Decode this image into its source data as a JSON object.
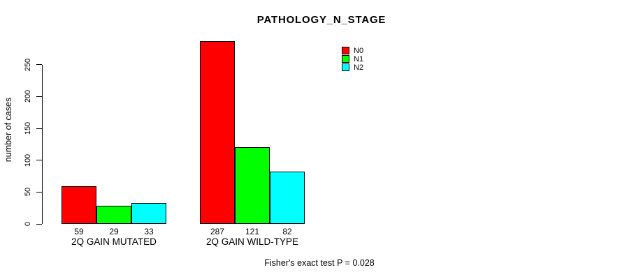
{
  "chart_data": {
    "type": "bar",
    "title": "PATHOLOGY_N_STAGE",
    "ylabel": "number of cases",
    "xlabel": "",
    "annotation": "Fisher's exact test P = 0.028",
    "categories": [
      "2Q GAIN MUTATED",
      "2Q GAIN WILD-TYPE"
    ],
    "series": [
      {
        "name": "N0",
        "color": "#FF0000",
        "values": [
          59,
          287
        ]
      },
      {
        "name": "N1",
        "color": "#00FF00",
        "values": [
          29,
          121
        ]
      },
      {
        "name": "N2",
        "color": "#00FFFF",
        "values": [
          33,
          82
        ]
      }
    ],
    "yticks": [
      0,
      50,
      100,
      150,
      200,
      250
    ],
    "ylim": [
      0,
      290
    ],
    "grid": false,
    "bar_value_labels_shown": true,
    "legend_position": "top-right-inside",
    "background_color": "#FFFFFF",
    "axis_color": "#000000"
  }
}
